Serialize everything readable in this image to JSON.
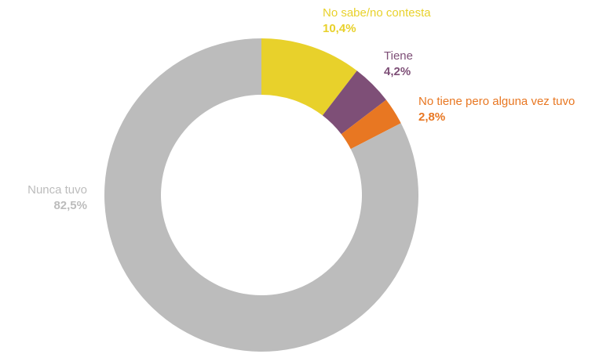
{
  "chart_data": {
    "type": "donut",
    "categories": [
      "No sabe/no contesta",
      "Tiene",
      "No tiene pero alguna vez tuvo",
      "Nunca tuvo"
    ],
    "values": [
      10.4,
      4.2,
      2.8,
      82.5
    ],
    "value_labels": [
      "10,4%",
      "4,2%",
      "2,8%",
      "82,5%"
    ],
    "colors": [
      "#e8d12b",
      "#7e4f77",
      "#e87722",
      "#bcbcbc"
    ]
  }
}
